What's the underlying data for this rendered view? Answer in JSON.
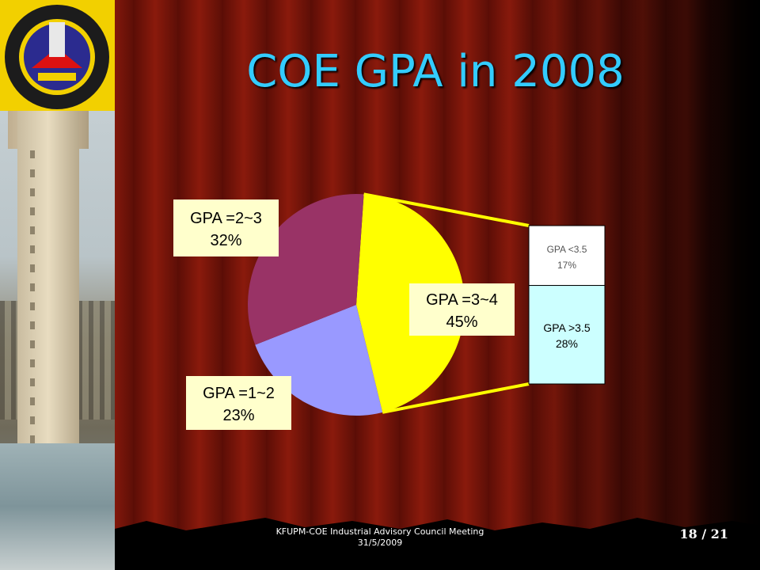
{
  "slide": {
    "title": "COE GPA in 2008",
    "footer_line1": "KFUPM-COE Industrial Advisory Council Meeting",
    "footer_line2": "31/5/2009",
    "page_number": "18 / 21"
  },
  "chart_data": {
    "type": "pie",
    "title": "",
    "slices": [
      {
        "label": "GPA =3~4",
        "value": 45,
        "value_label": "45%",
        "color": "#ffff00"
      },
      {
        "label": "GPA =1~2",
        "value": 23,
        "value_label": "23%",
        "color": "#9999ff"
      },
      {
        "label": "GPA =2~3",
        "value": 32,
        "value_label": "32%",
        "color": "#993366"
      }
    ],
    "breakdown": {
      "of": "GPA =3~4",
      "parts": [
        {
          "label": "GPA <3.5",
          "value": 17,
          "value_label": "17%",
          "color": "#ffffff"
        },
        {
          "label": "GPA >3.5",
          "value": 28,
          "value_label": "28%",
          "color": "#ccffff"
        }
      ]
    }
  },
  "colors": {
    "title": "#33ccff",
    "label_box": "#ffffcc",
    "background": "#7a1508"
  },
  "icons": [
    "kfupm-logo-icon",
    "campus-tower-photo"
  ]
}
